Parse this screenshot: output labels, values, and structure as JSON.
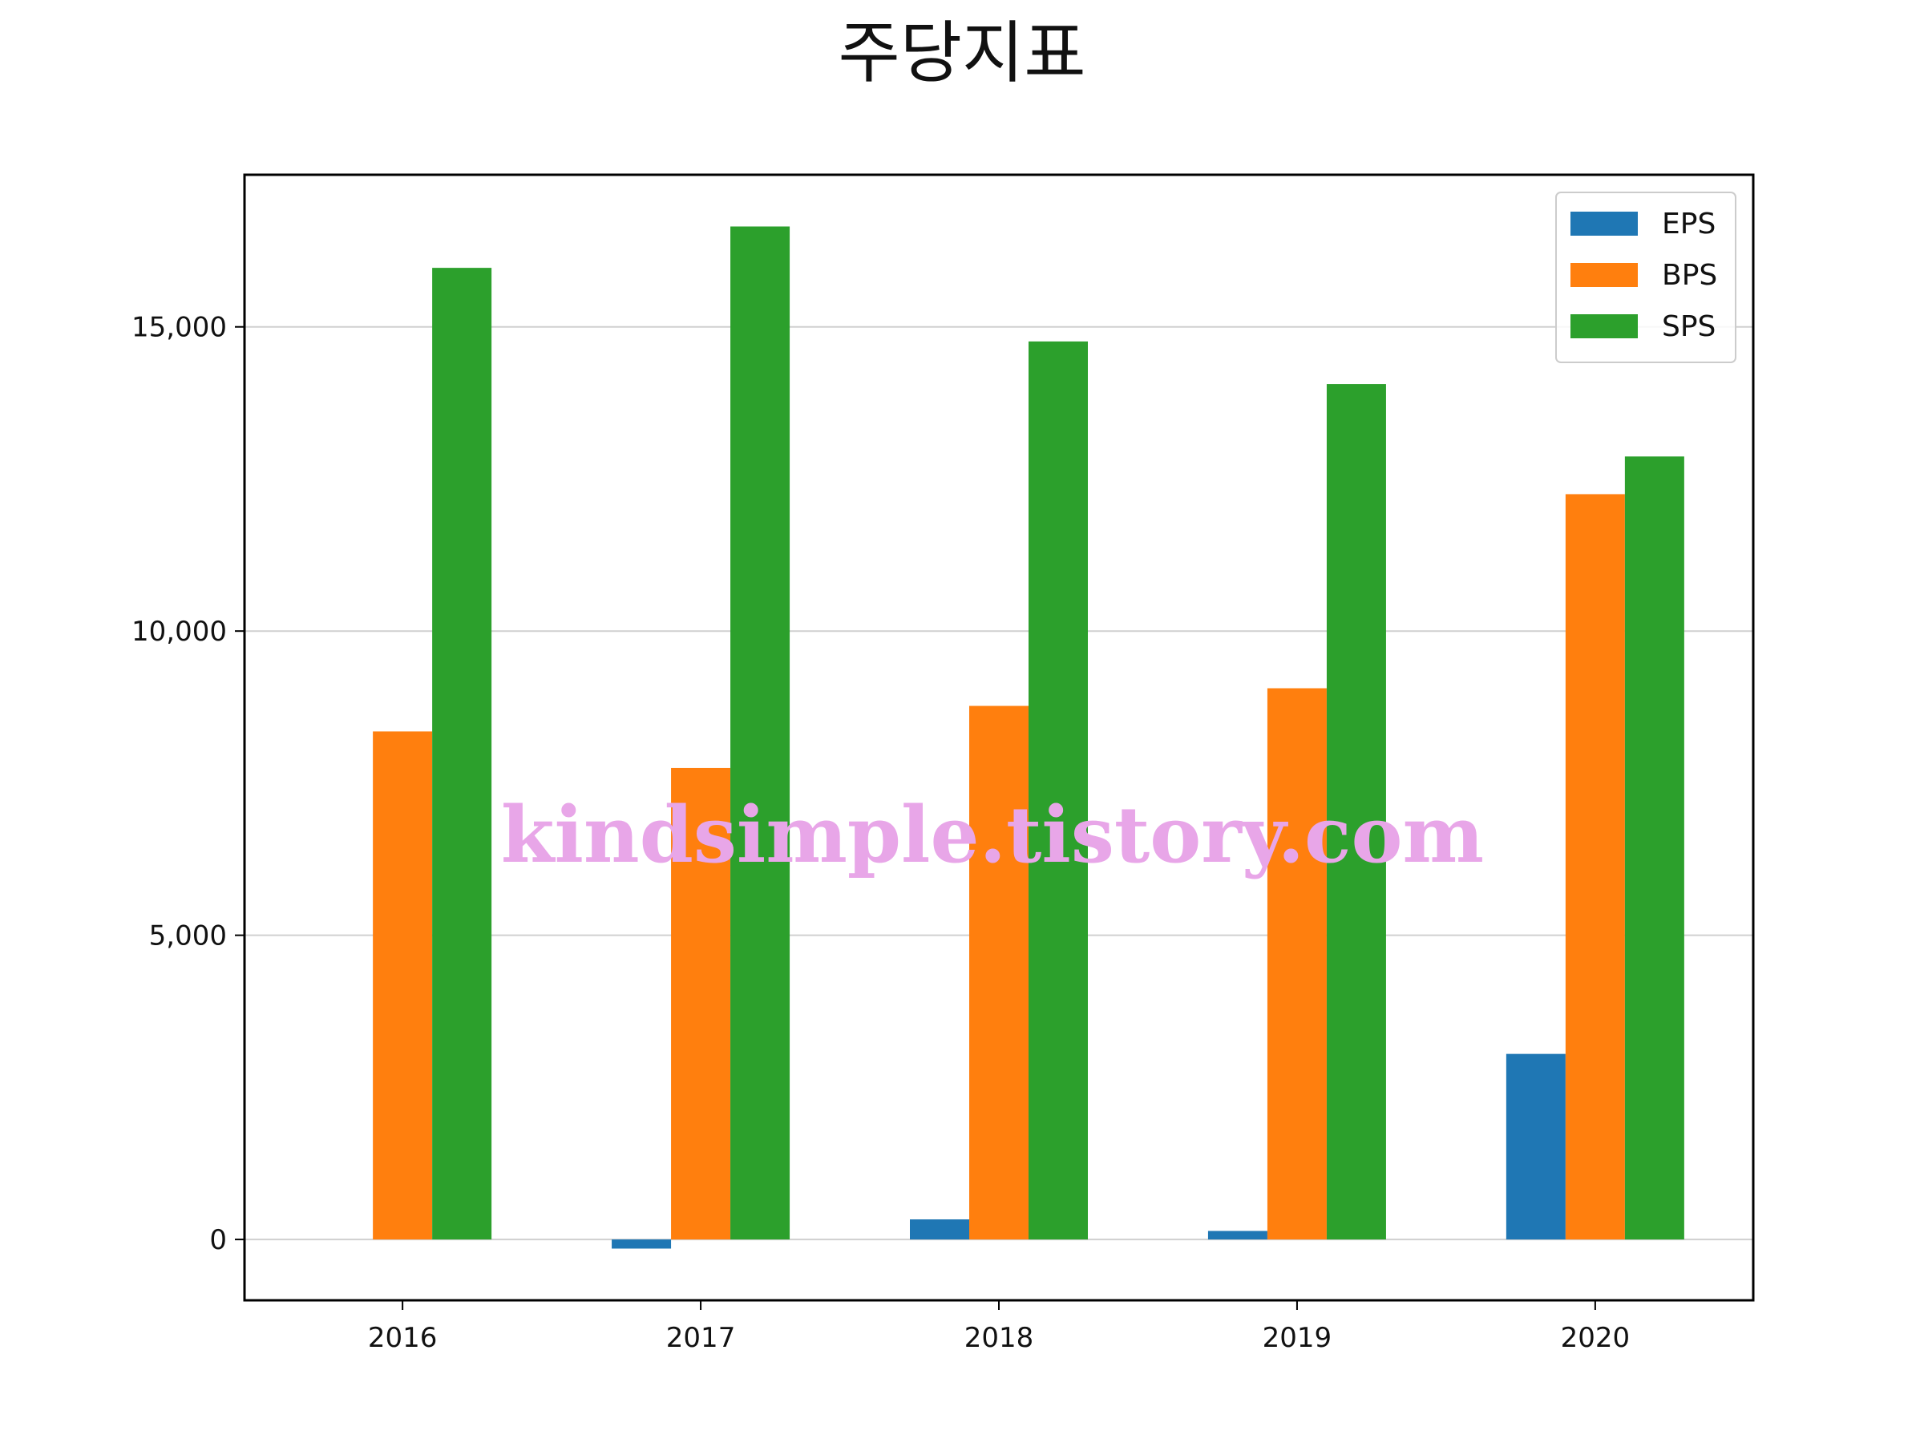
{
  "chart_data": {
    "type": "bar",
    "title": "주당지표",
    "xlabel": "",
    "ylabel": "",
    "categories": [
      "2016",
      "2017",
      "2018",
      "2019",
      "2020"
    ],
    "series": [
      {
        "name": "EPS",
        "color": "#1f77b4",
        "values": [
          0,
          -150,
          330,
          140,
          3050
        ]
      },
      {
        "name": "BPS",
        "color": "#ff7f0e",
        "values": [
          8350,
          7750,
          8770,
          9060,
          12250
        ]
      },
      {
        "name": "SPS",
        "color": "#2ca02c",
        "values": [
          15970,
          16650,
          14760,
          14060,
          12870
        ]
      }
    ],
    "ylim": [
      -1000,
      17500
    ],
    "yticks": [
      0,
      5000,
      10000,
      15000
    ],
    "ytick_labels": [
      "0",
      "5,000",
      "10,000",
      "15,000"
    ],
    "grid": "horizontal",
    "legend_position": "top-right"
  },
  "watermark": "kindsimple.tistory.com"
}
